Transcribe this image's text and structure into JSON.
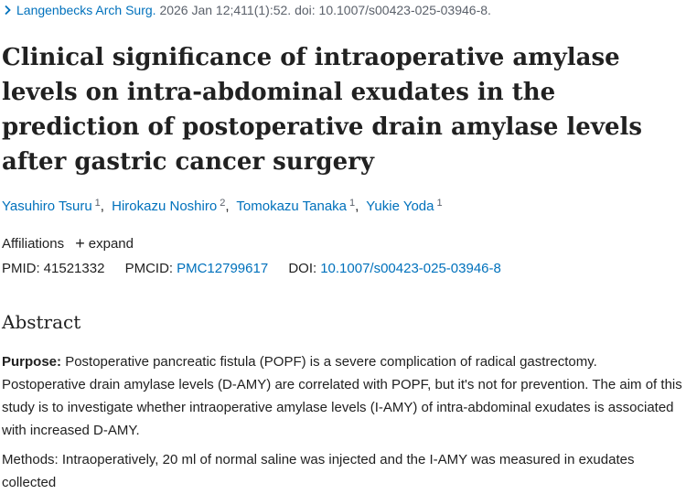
{
  "citation": {
    "journal": "Langenbecks Arch Surg.",
    "details": "2026 Jan 12;411(1):52. doi: 10.1007/s00423-025-03946-8."
  },
  "title": "Clinical significance of intraoperative amylase levels on intra-abdominal exudates in the prediction of postoperative drain amylase levels after gastric cancer surgery",
  "authors": [
    {
      "name": "Yasuhiro Tsuru",
      "aff": "1"
    },
    {
      "name": "Hirokazu Noshiro",
      "aff": "2"
    },
    {
      "name": "Tomokazu Tanaka",
      "aff": "1"
    },
    {
      "name": "Yukie Yoda",
      "aff": "1"
    }
  ],
  "affiliations": {
    "label": "Affiliations",
    "expand": "expand"
  },
  "ids": {
    "pmid_label": "PMID:",
    "pmid": "41521332",
    "pmcid_label": "PMCID:",
    "pmcid": "PMC12799617",
    "doi_label": "DOI:",
    "doi": "10.1007/s00423-025-03946-8"
  },
  "abstract": {
    "heading": "Abstract",
    "purpose_label": "Purpose:",
    "purpose_text": "Postoperative pancreatic fistula (POPF) is a severe complication of radical gastrectomy. Postoperative drain amylase levels (D-AMY) are correlated with POPF, but it's not for prevention. The aim of this study is to investigate whether intraoperative amylase levels (I-AMY) of intra-abdominal exudates is associated with increased D-AMY.",
    "next_line": "Methods: Intraoperatively, 20 ml of normal saline was injected and the I-AMY was measured in exudates collected"
  },
  "colors": {
    "link": "#0071bc",
    "text": "#212121",
    "muted": "#5b616b"
  }
}
